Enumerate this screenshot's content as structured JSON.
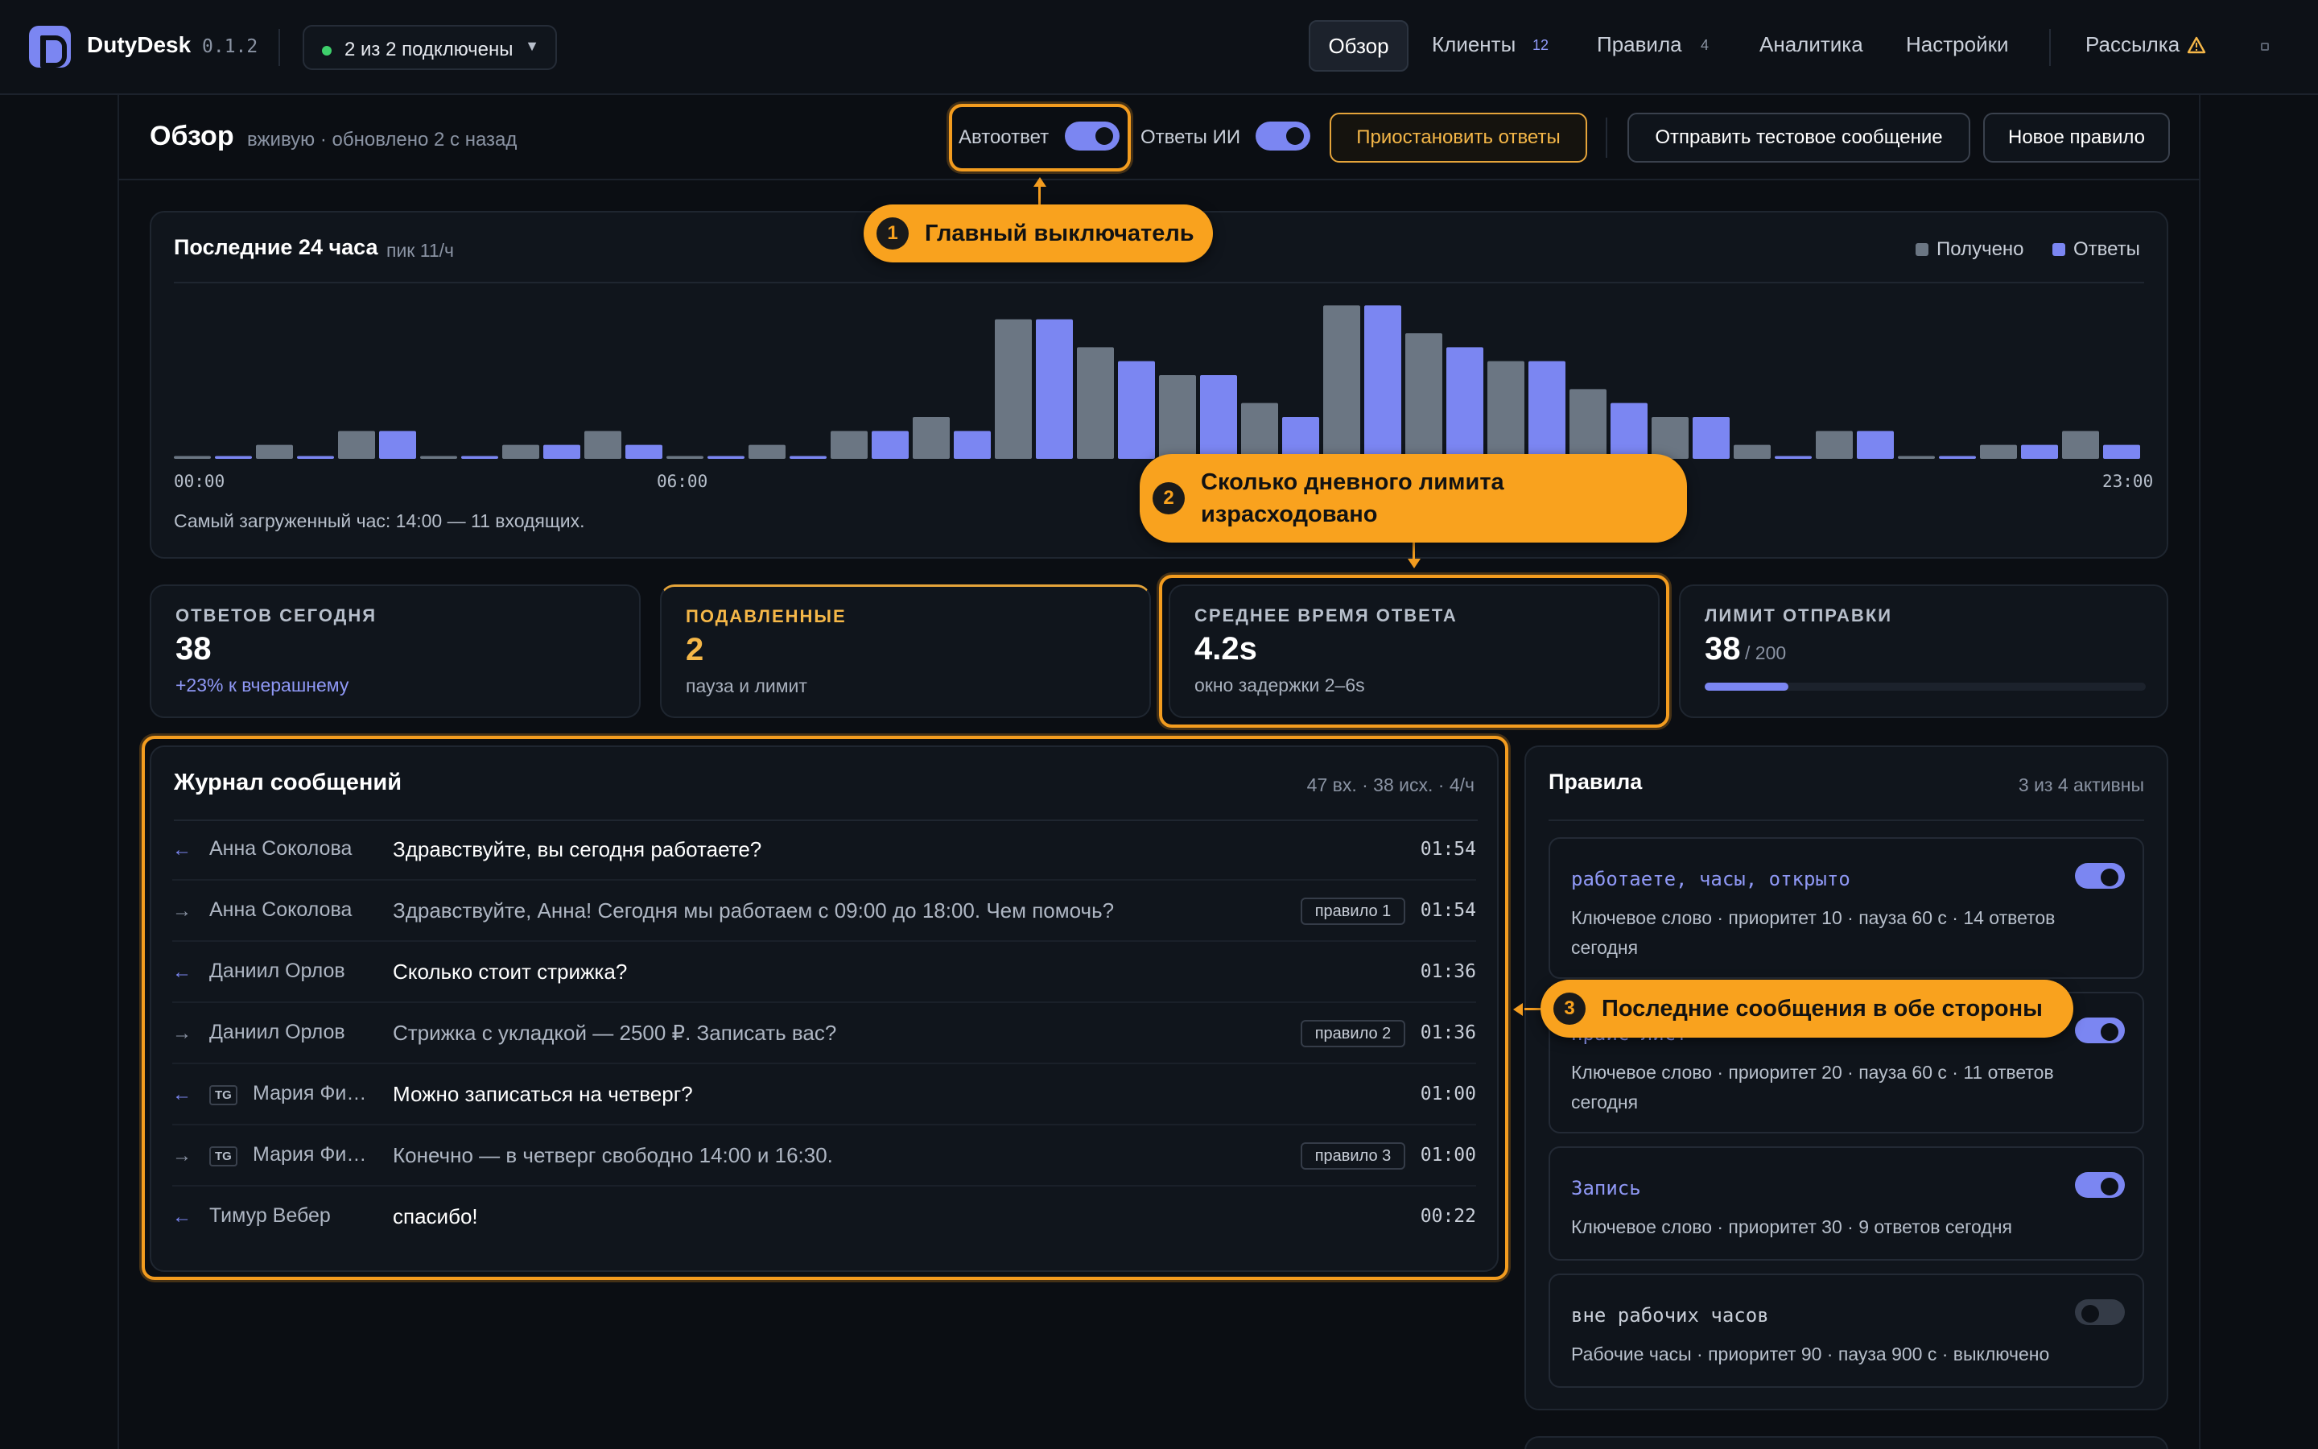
{
  "app": {
    "name": "DutyDesk",
    "version": "0.1.2"
  },
  "connection": {
    "status": "2 из 2 подключены",
    "caret": "▼"
  },
  "nav": {
    "overview": "Обзор",
    "clients": "Клиенты",
    "clients_count": "12",
    "rules": "Правила",
    "rules_count": "4",
    "analytics": "Аналитика",
    "settings": "Настройки",
    "mailing": "Рассылка"
  },
  "header": {
    "title": "Обзор",
    "subtitle": "вживую · обновлено 2 с назад",
    "autoreply_label": "Автоответ",
    "ai_label": "Ответы ИИ",
    "pause_button": "Приостановить ответы",
    "test_button": "Отправить тестовое сообщение",
    "new_rule_button": "Новое правило"
  },
  "activity": {
    "title": "Последние 24 часа",
    "peak": "пик 11/ч",
    "legend_received": "Получено",
    "legend_replies": "Ответы",
    "axis_start": "00:00",
    "axis_mid": "06:00",
    "axis_end": "23:00",
    "summary": "Самый загруженный час: 14:00 — 11 входящих."
  },
  "chart_data": {
    "type": "bar",
    "categories": [
      "00",
      "01",
      "02",
      "03",
      "04",
      "05",
      "06",
      "07",
      "08",
      "09",
      "10",
      "11",
      "12",
      "13",
      "14",
      "15",
      "16",
      "17",
      "18",
      "19",
      "20",
      "21",
      "22",
      "23"
    ],
    "series": [
      {
        "name": "Получено",
        "values": [
          0.2,
          1,
          2,
          0.2,
          1,
          2,
          0.2,
          1,
          2,
          3,
          10,
          8,
          6,
          4,
          11,
          9,
          7,
          5,
          3,
          1,
          2,
          0.2,
          1,
          2
        ]
      },
      {
        "name": "Ответы",
        "values": [
          0.2,
          0.2,
          2,
          0.2,
          1,
          1,
          0.2,
          0.2,
          2,
          2,
          10,
          7,
          6,
          3,
          11,
          8,
          7,
          4,
          3,
          0.2,
          2,
          0.2,
          1,
          1
        ]
      }
    ],
    "colors": {
      "received": "#6b7683",
      "replies": "#7b86f2"
    },
    "ylim": [
      0,
      12
    ],
    "grid": false,
    "legend": "top-right"
  },
  "stats": [
    {
      "label": "ОТВЕТОВ СЕГОДНЯ",
      "value": "38",
      "sub": "+23% к вчерашнему"
    },
    {
      "label": "ПОДАВЛЕННЫЕ",
      "value": "2",
      "sub": "пауза и лимит"
    },
    {
      "label": "СРЕДНЕЕ ВРЕМЯ ОТВЕТА",
      "value": "4.2s",
      "sub": "окно задержки 2–6s"
    },
    {
      "label": "ЛИМИТ ОТПРАВКИ",
      "value": "38",
      "limit": "/ 200",
      "fraction": 0.19
    }
  ],
  "log": {
    "title": "Журнал сообщений",
    "summary": "47 вх. · 38 исх. · 4/ч",
    "rows": [
      {
        "dir": "in",
        "tg": "",
        "sender": "Анна Соколова",
        "text": "Здравствуйте, вы сегодня работаете?",
        "rule": "",
        "time": "01:54"
      },
      {
        "dir": "out",
        "tg": "",
        "sender": "Анна Соколова",
        "text": "Здравствуйте, Анна! Сегодня мы работаем с 09:00 до 18:00. Чем помочь?",
        "rule": "правило 1",
        "time": "01:54"
      },
      {
        "dir": "in",
        "tg": "",
        "sender": "Даниил Орлов",
        "text": "Сколько стоит стрижка?",
        "rule": "",
        "time": "01:36"
      },
      {
        "dir": "out",
        "tg": "",
        "sender": "Даниил Орлов",
        "text": "Стрижка с укладкой — 2500 ₽. Записать вас?",
        "rule": "правило 2",
        "time": "01:36"
      },
      {
        "dir": "in",
        "tg": "TG",
        "sender": "Мария Фи…",
        "text": "Можно записаться на четверг?",
        "rule": "",
        "time": "01:00"
      },
      {
        "dir": "out",
        "tg": "TG",
        "sender": "Мария Фи…",
        "text": "Конечно — в четверг свободно 14:00 и 16:30.",
        "rule": "правило 3",
        "time": "01:00"
      },
      {
        "dir": "in",
        "tg": "",
        "sender": "Тимур Вебер",
        "text": "спасибо!",
        "rule": "",
        "time": "00:22"
      }
    ]
  },
  "rules": {
    "title": "Правила",
    "summary": "3 из 4 активны",
    "items": [
      {
        "name": "работаете, часы, открыто",
        "desc": "Ключевое слово · приоритет 10 · пауза 60 с · 14 ответов сегодня",
        "active": true
      },
      {
        "name": "прайс-лист",
        "desc": "Ключевое слово · приоритет 20 · пауза 60 с · 11 ответов сегодня",
        "active": true
      },
      {
        "name": "Запись",
        "desc": "Ключевое слово · приоритет 30 · 9 ответов сегодня",
        "active": true
      },
      {
        "name": "вне рабочих часов",
        "desc": "Рабочие часы · приоритет 90 · пауза 900 с · выключено",
        "active": false
      }
    ]
  },
  "callouts": [
    {
      "num": "1",
      "text": "Главный выключатель"
    },
    {
      "num": "2",
      "text_line1": "Сколько дневного лимита",
      "text_line2": "израсходовано"
    },
    {
      "num": "3",
      "text": "Последние сообщения в обе стороны"
    }
  ],
  "accent_color": "#7b86f2",
  "warning_color": "#f9a21e"
}
